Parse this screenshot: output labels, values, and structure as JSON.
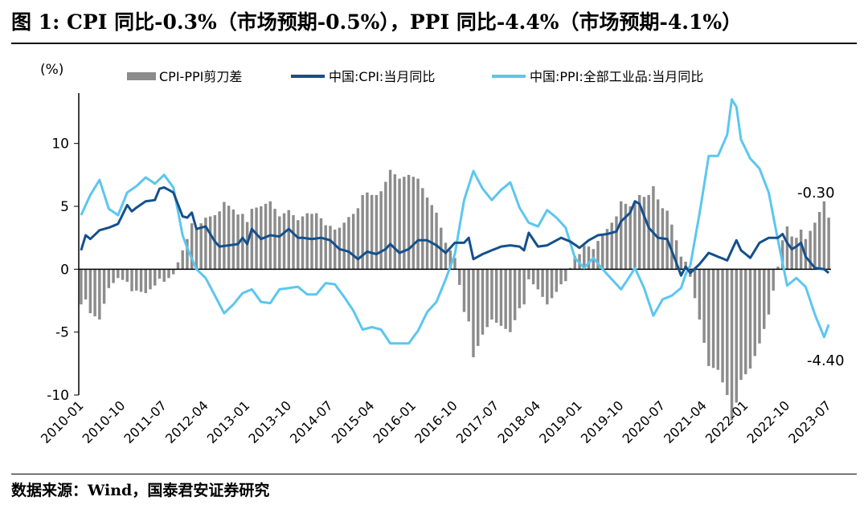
{
  "header": {
    "title": "图 1:   CPI 同比-0.3%（市场预期-0.5%），PPI 同比-4.4%（市场预期-4.1%）"
  },
  "footer": {
    "source": "数据来源：Wind，国泰君安证券研究"
  },
  "colors": {
    "gap_bar": "#8c8c8c",
    "cpi_line": "#14508c",
    "ppi_line": "#5bc6f0"
  },
  "chart_data": {
    "type": "bar+line",
    "title": "",
    "ylabel": "(%)",
    "xlabel": "",
    "ylim": [
      -10,
      14
    ],
    "yticks": [
      -10,
      -5,
      0,
      5,
      10
    ],
    "x_start": "2010-01",
    "x_end": "2023-07",
    "xtick_labels": [
      "2010-01",
      "2010-10",
      "2011-07",
      "2012-04",
      "2013-01",
      "2013-10",
      "2014-07",
      "2015-04",
      "2016-01",
      "2016-10",
      "2017-07",
      "2018-04",
      "2019-01",
      "2019-10",
      "2020-07",
      "2021-04",
      "2022-01",
      "2022-10",
      "2023-07"
    ],
    "legend": {
      "placement": "top",
      "entries": [
        "CPI-PPI剪刀差",
        "中国:CPI:当月同比",
        "中国:PPI:全部工业品:当月同比"
      ]
    },
    "annotations": [
      {
        "label": "-0.30",
        "month": "2023-07",
        "value": -0.3
      },
      {
        "label": "-4.40",
        "month": "2023-07",
        "value": -4.4
      }
    ],
    "series": [
      {
        "name": "中国:CPI:当月同比",
        "kind": "line",
        "anchors": [
          [
            "2010-01",
            1.5
          ],
          [
            "2010-02",
            2.7
          ],
          [
            "2010-03",
            2.4
          ],
          [
            "2010-05",
            3.1
          ],
          [
            "2010-07",
            3.3
          ],
          [
            "2010-09",
            3.6
          ],
          [
            "2010-11",
            5.1
          ],
          [
            "2010-12",
            4.6
          ],
          [
            "2011-01",
            4.9
          ],
          [
            "2011-03",
            5.4
          ],
          [
            "2011-05",
            5.5
          ],
          [
            "2011-06",
            6.4
          ],
          [
            "2011-07",
            6.5
          ],
          [
            "2011-09",
            6.1
          ],
          [
            "2011-11",
            4.2
          ],
          [
            "2011-12",
            4.1
          ],
          [
            "2012-01",
            4.5
          ],
          [
            "2012-02",
            3.2
          ],
          [
            "2012-04",
            3.4
          ],
          [
            "2012-06",
            2.2
          ],
          [
            "2012-07",
            1.8
          ],
          [
            "2012-09",
            1.9
          ],
          [
            "2012-11",
            2.0
          ],
          [
            "2012-12",
            2.5
          ],
          [
            "2013-01",
            2.0
          ],
          [
            "2013-02",
            3.2
          ],
          [
            "2013-04",
            2.4
          ],
          [
            "2013-06",
            2.7
          ],
          [
            "2013-08",
            2.6
          ],
          [
            "2013-10",
            3.2
          ],
          [
            "2013-12",
            2.5
          ],
          [
            "2014-01",
            2.5
          ],
          [
            "2014-03",
            2.4
          ],
          [
            "2014-05",
            2.5
          ],
          [
            "2014-07",
            2.3
          ],
          [
            "2014-09",
            1.6
          ],
          [
            "2014-11",
            1.4
          ],
          [
            "2015-01",
            0.8
          ],
          [
            "2015-03",
            1.4
          ],
          [
            "2015-05",
            1.2
          ],
          [
            "2015-07",
            1.6
          ],
          [
            "2015-08",
            2.0
          ],
          [
            "2015-10",
            1.3
          ],
          [
            "2015-12",
            1.6
          ],
          [
            "2016-02",
            2.3
          ],
          [
            "2016-04",
            2.3
          ],
          [
            "2016-06",
            1.9
          ],
          [
            "2016-08",
            1.3
          ],
          [
            "2016-10",
            2.1
          ],
          [
            "2016-12",
            2.1
          ],
          [
            "2017-01",
            2.5
          ],
          [
            "2017-02",
            0.8
          ],
          [
            "2017-04",
            1.2
          ],
          [
            "2017-06",
            1.5
          ],
          [
            "2017-08",
            1.8
          ],
          [
            "2017-10",
            1.9
          ],
          [
            "2017-12",
            1.8
          ],
          [
            "2018-01",
            1.5
          ],
          [
            "2018-02",
            2.9
          ],
          [
            "2018-04",
            1.8
          ],
          [
            "2018-06",
            1.9
          ],
          [
            "2018-09",
            2.5
          ],
          [
            "2018-11",
            2.2
          ],
          [
            "2019-01",
            1.7
          ],
          [
            "2019-03",
            2.3
          ],
          [
            "2019-05",
            2.7
          ],
          [
            "2019-07",
            2.8
          ],
          [
            "2019-09",
            3.0
          ],
          [
            "2019-10",
            3.8
          ],
          [
            "2019-12",
            4.5
          ],
          [
            "2020-01",
            5.4
          ],
          [
            "2020-02",
            5.2
          ],
          [
            "2020-04",
            3.3
          ],
          [
            "2020-06",
            2.5
          ],
          [
            "2020-08",
            2.4
          ],
          [
            "2020-10",
            0.5
          ],
          [
            "2020-11",
            -0.5
          ],
          [
            "2020-12",
            0.2
          ],
          [
            "2021-01",
            -0.3
          ],
          [
            "2021-03",
            0.4
          ],
          [
            "2021-05",
            1.3
          ],
          [
            "2021-07",
            1.0
          ],
          [
            "2021-09",
            0.7
          ],
          [
            "2021-11",
            2.3
          ],
          [
            "2021-12",
            1.5
          ],
          [
            "2022-02",
            0.9
          ],
          [
            "2022-04",
            2.1
          ],
          [
            "2022-06",
            2.5
          ],
          [
            "2022-08",
            2.5
          ],
          [
            "2022-09",
            2.8
          ],
          [
            "2022-10",
            2.1
          ],
          [
            "2022-11",
            1.6
          ],
          [
            "2022-12",
            1.8
          ],
          [
            "2023-01",
            2.1
          ],
          [
            "2023-02",
            1.0
          ],
          [
            "2023-04",
            0.1
          ],
          [
            "2023-06",
            0.0
          ],
          [
            "2023-07",
            -0.3
          ]
        ]
      },
      {
        "name": "中国:PPI:全部工业品:当月同比",
        "kind": "line",
        "anchors": [
          [
            "2010-01",
            4.3
          ],
          [
            "2010-03",
            5.9
          ],
          [
            "2010-05",
            7.1
          ],
          [
            "2010-07",
            4.8
          ],
          [
            "2010-09",
            4.3
          ],
          [
            "2010-11",
            6.1
          ],
          [
            "2011-01",
            6.6
          ],
          [
            "2011-03",
            7.3
          ],
          [
            "2011-05",
            6.8
          ],
          [
            "2011-07",
            7.5
          ],
          [
            "2011-09",
            6.5
          ],
          [
            "2011-11",
            2.7
          ],
          [
            "2011-12",
            1.7
          ],
          [
            "2012-02",
            0.0
          ],
          [
            "2012-04",
            -0.7
          ],
          [
            "2012-06",
            -2.1
          ],
          [
            "2012-08",
            -3.5
          ],
          [
            "2012-10",
            -2.8
          ],
          [
            "2012-12",
            -1.9
          ],
          [
            "2013-02",
            -1.6
          ],
          [
            "2013-04",
            -2.6
          ],
          [
            "2013-06",
            -2.7
          ],
          [
            "2013-08",
            -1.6
          ],
          [
            "2013-10",
            -1.5
          ],
          [
            "2013-12",
            -1.4
          ],
          [
            "2014-02",
            -2.0
          ],
          [
            "2014-04",
            -2.0
          ],
          [
            "2014-06",
            -1.1
          ],
          [
            "2014-08",
            -1.2
          ],
          [
            "2014-10",
            -2.2
          ],
          [
            "2014-12",
            -3.3
          ],
          [
            "2015-02",
            -4.8
          ],
          [
            "2015-04",
            -4.6
          ],
          [
            "2015-06",
            -4.8
          ],
          [
            "2015-08",
            -5.9
          ],
          [
            "2015-10",
            -5.9
          ],
          [
            "2015-12",
            -5.9
          ],
          [
            "2016-02",
            -4.9
          ],
          [
            "2016-04",
            -3.4
          ],
          [
            "2016-06",
            -2.6
          ],
          [
            "2016-08",
            -0.8
          ],
          [
            "2016-10",
            1.2
          ],
          [
            "2016-12",
            5.5
          ],
          [
            "2017-02",
            7.8
          ],
          [
            "2017-04",
            6.4
          ],
          [
            "2017-06",
            5.5
          ],
          [
            "2017-08",
            6.3
          ],
          [
            "2017-10",
            6.9
          ],
          [
            "2017-12",
            4.9
          ],
          [
            "2018-02",
            3.7
          ],
          [
            "2018-04",
            3.4
          ],
          [
            "2018-06",
            4.7
          ],
          [
            "2018-08",
            4.1
          ],
          [
            "2018-10",
            3.3
          ],
          [
            "2018-12",
            0.9
          ],
          [
            "2019-02",
            0.1
          ],
          [
            "2019-04",
            0.9
          ],
          [
            "2019-06",
            0.0
          ],
          [
            "2019-08",
            -0.8
          ],
          [
            "2019-10",
            -1.6
          ],
          [
            "2019-12",
            -0.5
          ],
          [
            "2020-01",
            0.1
          ],
          [
            "2020-03",
            -1.5
          ],
          [
            "2020-05",
            -3.7
          ],
          [
            "2020-07",
            -2.4
          ],
          [
            "2020-09",
            -2.1
          ],
          [
            "2020-11",
            -1.5
          ],
          [
            "2020-12",
            -0.4
          ],
          [
            "2021-01",
            0.3
          ],
          [
            "2021-03",
            4.4
          ],
          [
            "2021-05",
            9.0
          ],
          [
            "2021-07",
            9.0
          ],
          [
            "2021-09",
            10.7
          ],
          [
            "2021-10",
            13.5
          ],
          [
            "2021-11",
            12.9
          ],
          [
            "2021-12",
            10.3
          ],
          [
            "2022-02",
            8.8
          ],
          [
            "2022-04",
            8.0
          ],
          [
            "2022-06",
            6.1
          ],
          [
            "2022-08",
            2.3
          ],
          [
            "2022-10",
            -1.3
          ],
          [
            "2022-12",
            -0.7
          ],
          [
            "2023-02",
            -1.4
          ],
          [
            "2023-04",
            -3.6
          ],
          [
            "2023-06",
            -5.4
          ],
          [
            "2023-07",
            -4.4
          ]
        ]
      },
      {
        "name": "CPI-PPI剪刀差",
        "kind": "bar",
        "derived_from": "中国:CPI:当月同比 minus 中国:PPI:全部工业品:当月同比"
      }
    ]
  }
}
